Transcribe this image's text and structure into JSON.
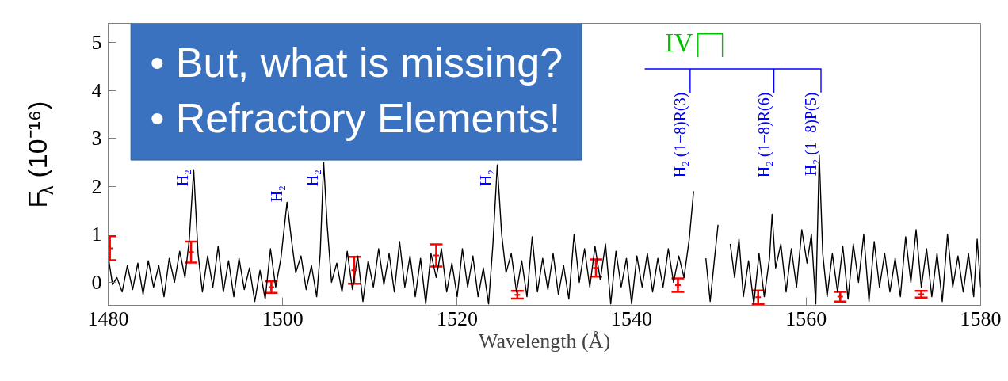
{
  "chart_data": {
    "type": "line",
    "xlabel": "Wavelength (Å)",
    "ylabel": "F$_{λ}$ (10⁻¹⁶)",
    "xlim": [
      1480,
      1580
    ],
    "ylim": [
      -0.48,
      5.4
    ],
    "xticks": [
      1480,
      1500,
      1520,
      1540,
      1560,
      1580
    ],
    "yticks": [
      0,
      1,
      2,
      3,
      4,
      5
    ],
    "grid": false,
    "marker": "none",
    "line_style": "solid",
    "series": [
      {
        "color": "#000000",
        "x": [
          1480.0,
          1480.5,
          1481.0,
          1481.6,
          1482.2,
          1482.8,
          1483.4,
          1484.0,
          1484.6,
          1485.2,
          1485.8,
          1486.4,
          1487.0,
          1487.6,
          1488.2,
          1488.8,
          1489.3,
          1489.8,
          1490.3,
          1490.8,
          1491.4,
          1492.0,
          1492.6,
          1493.2,
          1493.8,
          1494.4,
          1495.0,
          1495.6,
          1496.2,
          1496.8,
          1497.4,
          1498.0,
          1498.6,
          1499.2,
          1499.8,
          1500.5,
          1501.0,
          1501.5,
          1502.1,
          1502.7,
          1503.3,
          1503.9,
          1504.3,
          1504.7,
          1505.1,
          1505.6,
          1506.2,
          1506.8,
          1507.4,
          1508.0,
          1508.6,
          1509.2,
          1509.8,
          1510.4,
          1511.0,
          1511.6,
          1512.2,
          1512.8,
          1513.4,
          1514.0,
          1514.6,
          1515.2,
          1515.8,
          1516.4,
          1517.0,
          1517.6,
          1518.2,
          1518.8,
          1519.4,
          1520.0,
          1520.6,
          1521.2,
          1521.8,
          1522.4,
          1523.0,
          1523.6,
          1524.1,
          1524.6,
          1525.1,
          1525.6,
          1526.2,
          1526.8,
          1527.4,
          1528.0,
          1528.6,
          1529.2,
          1529.8,
          1530.4,
          1531.0,
          1531.6,
          1532.2,
          1532.8,
          1533.4,
          1534.0,
          1534.6,
          1535.2,
          1535.8,
          1536.4,
          1537.0,
          1537.6,
          1538.2,
          1538.8,
          1539.4,
          1540.0,
          1540.6,
          1541.2,
          1541.8,
          1542.4,
          1543.0,
          1543.6,
          1544.2,
          1544.8,
          1545.4,
          1546.0,
          1546.6,
          1547.1,
          1547.6,
          1548.1,
          1548.5,
          1549.0,
          1549.5,
          1549.9,
          1550.3,
          1550.8,
          1551.3,
          1551.8,
          1552.3,
          1552.8,
          1553.4,
          1554.0,
          1554.6,
          1555.2,
          1555.8,
          1556.1,
          1556.5,
          1557.1,
          1557.7,
          1558.3,
          1558.9,
          1559.5,
          1560.1,
          1560.6,
          1561.1,
          1561.5,
          1561.9,
          1562.4,
          1563.0,
          1563.6,
          1564.2,
          1564.8,
          1565.4,
          1566.0,
          1566.6,
          1567.2,
          1567.8,
          1568.4,
          1569.0,
          1569.6,
          1570.2,
          1570.8,
          1571.4,
          1572.0,
          1572.6,
          1573.2,
          1573.8,
          1574.4,
          1575.0,
          1575.6,
          1576.2,
          1576.8,
          1577.4,
          1578.0,
          1578.6,
          1579.2,
          1579.6,
          1580.0
        ],
        "values": [
          0.55,
          -0.05,
          0.1,
          -0.2,
          0.35,
          -0.15,
          0.4,
          -0.25,
          0.45,
          -0.1,
          0.35,
          -0.3,
          0.5,
          0.0,
          0.65,
          0.1,
          0.9,
          2.35,
          0.6,
          -0.2,
          0.55,
          -0.1,
          0.75,
          -0.2,
          0.45,
          -0.3,
          0.5,
          -0.15,
          0.3,
          -0.4,
          0.25,
          -0.35,
          0.7,
          -0.1,
          0.5,
          1.67,
          0.9,
          0.2,
          0.55,
          -0.15,
          0.35,
          -0.3,
          0.6,
          2.5,
          1.2,
          0.0,
          0.4,
          -0.2,
          0.65,
          -0.15,
          0.55,
          -0.4,
          0.45,
          -0.1,
          0.7,
          -0.05,
          0.6,
          -0.2,
          0.85,
          -0.1,
          0.55,
          -0.3,
          0.5,
          -0.45,
          0.6,
          0.1,
          0.7,
          -0.2,
          0.4,
          -0.3,
          0.7,
          -0.1,
          0.55,
          -0.3,
          0.3,
          -0.45,
          0.8,
          2.45,
          1.0,
          0.2,
          0.6,
          -0.2,
          0.45,
          -0.3,
          0.95,
          -0.2,
          0.5,
          -0.15,
          0.6,
          -0.25,
          0.35,
          -0.35,
          1.0,
          0.0,
          0.7,
          -0.1,
          0.75,
          0.05,
          0.8,
          -0.45,
          0.65,
          -0.1,
          0.5,
          -0.45,
          0.55,
          -0.1,
          0.6,
          -0.2,
          0.5,
          -0.1,
          0.7,
          0.0,
          0.55,
          0.1,
          0.9,
          1.9,
          null,
          null,
          0.5,
          -0.4,
          0.5,
          1.2,
          null,
          null,
          0.8,
          0.1,
          0.9,
          -0.3,
          0.45,
          -0.45,
          0.6,
          -0.3,
          0.5,
          1.42,
          0.3,
          0.8,
          -0.2,
          0.7,
          -0.1,
          1.1,
          0.4,
          1.0,
          -0.45,
          2.65,
          0.6,
          -0.3,
          0.6,
          -0.2,
          0.75,
          -0.35,
          0.8,
          0.0,
          1.0,
          -0.4,
          0.85,
          -0.1,
          0.6,
          -0.2,
          0.5,
          -0.3,
          0.95,
          0.0,
          1.1,
          -0.1,
          0.7,
          -0.3,
          0.6,
          -0.4,
          1.0,
          -0.1,
          0.55,
          -0.2,
          0.6,
          -0.3,
          0.9,
          -0.1
        ]
      },
      {
        "type": "line",
        "color": "#0000ff",
        "x": [
          1541.5,
          1546.7,
          1546.7,
          1546.7,
          1556.3,
          1556.3,
          1556.3,
          1561.7,
          1561.7
        ],
        "values": [
          4.45,
          4.45,
          3.96,
          4.45,
          4.45,
          3.96,
          4.45,
          4.45,
          3.96
        ]
      },
      {
        "type": "line",
        "color": "#00c000",
        "x": [
          1547.6,
          1547.6,
          1550.4,
          1550.4
        ],
        "values": [
          4.7,
          5.18,
          5.18,
          4.7
        ]
      },
      {
        "type": "scatter",
        "color": "#ff0000",
        "marker": "cross",
        "x": [
          1480.2,
          1489.5,
          1498.7,
          1508.2,
          1517.6,
          1526.9,
          1535.9,
          1545.3,
          1554.5,
          1563.9,
          1573.2
        ],
        "values": [
          0.71,
          0.63,
          -0.1,
          0.25,
          0.56,
          -0.26,
          0.3,
          -0.06,
          -0.31,
          -0.3,
          -0.25
        ],
        "errors": [
          0.25,
          0.22,
          0.12,
          0.28,
          0.23,
          0.08,
          0.18,
          0.14,
          0.14,
          0.1,
          0.07
        ]
      }
    ],
    "annotations": [
      "• But, what is missing?",
      "• Refractory Elements!",
      {
        "text": "H₂",
        "x": 1489.7,
        "y": 2.0
      },
      {
        "text": "H₂",
        "x": 1500.5,
        "y": 1.67
      },
      {
        "text": "H₂",
        "x": 1504.6,
        "y": 2.0
      },
      {
        "text": "H₂",
        "x": 1524.46,
        "y": 2.0
      },
      {
        "text": "H₂ (1−8)R(3)",
        "x": 1546.7,
        "y": 3.96
      },
      {
        "text": "H₂ (1−8)R(6)",
        "x": 1556.3,
        "y": 3.96
      },
      {
        "text": "H₂ (1−8)P(5)",
        "x": 1561.7,
        "y": 3.96
      },
      {
        "text": "IV",
        "x": 1547.6,
        "y": 5.18
      }
    ]
  }
}
